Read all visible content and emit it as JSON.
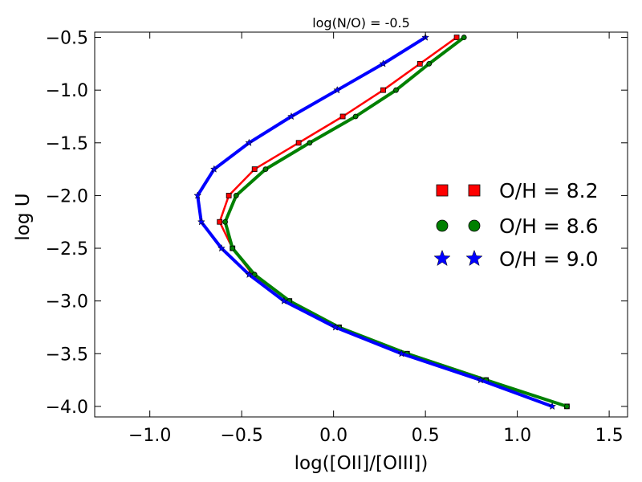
{
  "chart_data": {
    "type": "line",
    "title": "log(N/O) = -0.5",
    "xlabel": "log([OII]/[OIII])",
    "ylabel": "log U",
    "xlim": [
      -1.3,
      1.6
    ],
    "ylim": [
      -4.1,
      -0.45
    ],
    "xticks": [
      -1.0,
      -0.5,
      0.0,
      0.5,
      1.0,
      1.5
    ],
    "xtick_labels": [
      "−1.0",
      "−0.5",
      "0.0",
      "0.5",
      "1.0",
      "1.5"
    ],
    "yticks": [
      -0.5,
      -1.0,
      -1.5,
      -2.0,
      -2.5,
      -3.0,
      -3.5,
      -4.0
    ],
    "ytick_labels": [
      "−0.5",
      "−1.0",
      "−1.5",
      "−2.0",
      "−2.5",
      "−3.0",
      "−3.5",
      "−4.0"
    ],
    "grid": false,
    "legend_position": "center-right",
    "series": [
      {
        "name": "O/H = 8.2",
        "color": "#ff0000",
        "marker": "square",
        "x": [
          0.67,
          0.47,
          0.27,
          0.05,
          -0.19,
          -0.43,
          -0.57,
          -0.62,
          -0.55,
          -0.44,
          -0.24,
          0.03,
          0.4,
          0.83,
          1.27
        ],
        "y": [
          -0.5,
          -0.75,
          -1.0,
          -1.25,
          -1.5,
          -1.75,
          -2.0,
          -2.25,
          -2.5,
          -2.75,
          -3.0,
          -3.25,
          -3.5,
          -3.75,
          -4.0
        ]
      },
      {
        "name": "O/H = 8.6",
        "color": "#008000",
        "marker": "circle",
        "x": [
          0.71,
          0.52,
          0.34,
          0.12,
          -0.13,
          -0.37,
          -0.53,
          -0.59,
          -0.55,
          -0.43,
          -0.24,
          0.03,
          0.4,
          0.83,
          1.27
        ],
        "y": [
          -0.5,
          -0.75,
          -1.0,
          -1.25,
          -1.5,
          -1.75,
          -2.0,
          -2.25,
          -2.5,
          -2.75,
          -3.0,
          -3.25,
          -3.5,
          -3.75,
          -4.0
        ]
      },
      {
        "name": "O/H = 9.0",
        "color": "#0000ff",
        "marker": "star",
        "x": [
          0.5,
          0.27,
          0.02,
          -0.23,
          -0.46,
          -0.65,
          -0.74,
          -0.72,
          -0.61,
          -0.46,
          -0.27,
          0.01,
          0.37,
          0.8,
          1.19
        ],
        "y": [
          -0.5,
          -0.75,
          -1.0,
          -1.25,
          -1.5,
          -1.75,
          -2.0,
          -2.25,
          -2.5,
          -2.75,
          -3.0,
          -3.25,
          -3.5,
          -3.75,
          -4.0
        ]
      }
    ]
  }
}
